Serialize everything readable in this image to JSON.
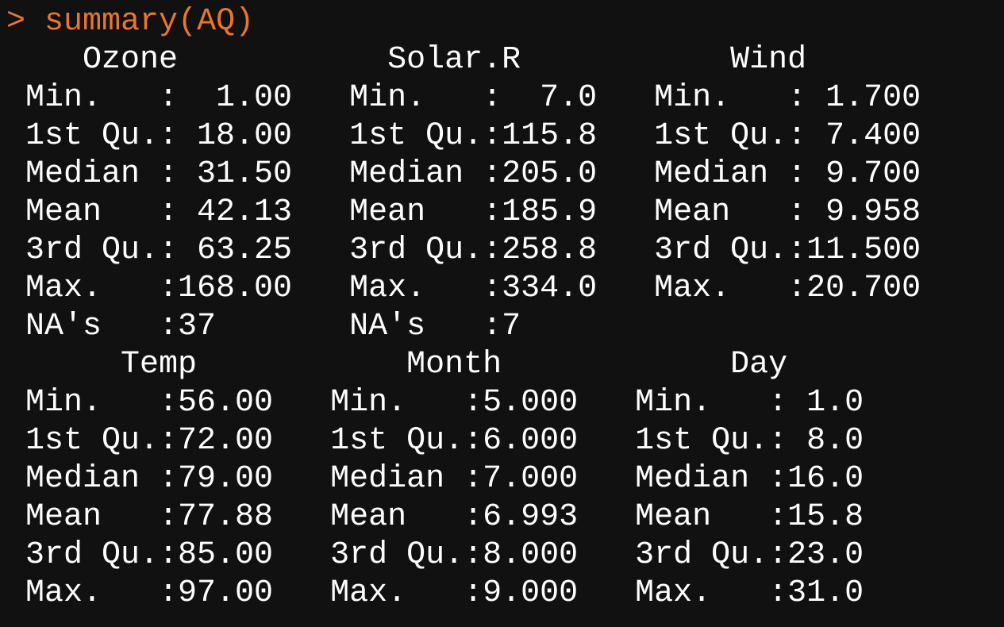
{
  "console": {
    "prompt_symbol": ">",
    "command": "summary(AQ)",
    "output_lines": [
      "    Ozone           Solar.R           Wind     ",
      " Min.   :  1.00   Min.   :  7.0   Min.   : 1.700  ",
      " 1st Qu.: 18.00   1st Qu.:115.8   1st Qu.: 7.400  ",
      " Median : 31.50   Median :205.0   Median : 9.700  ",
      " Mean   : 42.13   Mean   :185.9   Mean   : 9.958  ",
      " 3rd Qu.: 63.25   3rd Qu.:258.8   3rd Qu.:11.500  ",
      " Max.   :168.00   Max.   :334.0   Max.   :20.700  ",
      " NA's   :37       NA's   :7                       ",
      "      Temp           Month            Day      ",
      " Min.   :56.00   Min.   :5.000   Min.   : 1.0  ",
      " 1st Qu.:72.00   1st Qu.:6.000   1st Qu.: 8.0  ",
      " Median :79.00   Median :7.000   Median :16.0  ",
      " Mean   :77.88   Mean   :6.993   Mean   :15.8  ",
      " 3rd Qu.:85.00   3rd Qu.:8.000   3rd Qu.:23.0  ",
      " Max.   :97.00   Max.   :9.000   Max.   :31.0  "
    ]
  },
  "colors": {
    "background": "#111111",
    "output_text": "#ffffff",
    "prompt_text": "#e8762c"
  }
}
